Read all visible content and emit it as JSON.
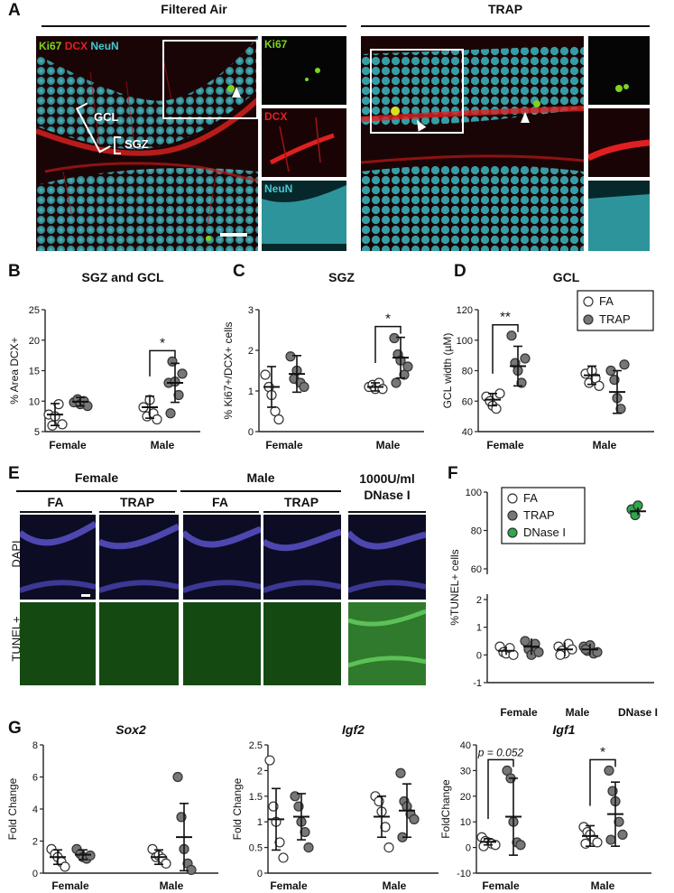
{
  "panel_letters": {
    "A": "A",
    "B": "B",
    "C": "C",
    "D": "D",
    "E": "E",
    "F": "F",
    "G": "G"
  },
  "panelA": {
    "group_left": "Filtered Air",
    "group_right": "TRAP",
    "stain_ki67": "Ki67",
    "stain_dcx": "DCX",
    "stain_neun": "NeuN",
    "inset_ki67": "Ki67",
    "inset_dcx": "DCX",
    "inset_neun": "NeuN",
    "gcl": "GCL",
    "sgz": "SGZ",
    "colors": {
      "ki67": "#7ed321",
      "dcx": "#e02020",
      "neun": "#46c9d1"
    }
  },
  "panelE": {
    "female": "Female",
    "male": "Male",
    "fa1": "FA",
    "trap1": "TRAP",
    "fa2": "FA",
    "trap2": "TRAP",
    "dnase_line1": "1000U/ml",
    "dnase_line2": "DNase I",
    "row_dapi": "DAPI",
    "row_tunel": "TUNEL+"
  },
  "chart_data": [
    {
      "id": "B",
      "type": "scatter",
      "title": "SGZ and GCL",
      "ylabel": "% Area DCX+",
      "ylim": [
        5,
        25
      ],
      "yticks": [
        5,
        10,
        15,
        20,
        25
      ],
      "categories": [
        "Female",
        "Male"
      ],
      "series": [
        {
          "name": "FA",
          "color": "#ffffff",
          "points": [
            [
              7.8,
              6.0,
              7.5,
              9.5,
              6.2
            ],
            [
              9.0,
              7.5,
              10.2,
              8.0,
              7.0
            ]
          ],
          "mean": [
            7.8,
            9.0
          ],
          "sd": [
            1.8,
            1.8
          ]
        },
        {
          "name": "TRAP",
          "color": "#777777",
          "points": [
            [
              9.8,
              10.3,
              9.5,
              10.0,
              9.2
            ],
            [
              13.0,
              16.5,
              13.2,
              11.0,
              14.5,
              8.0
            ]
          ],
          "mean": [
            9.9,
            13.0
          ],
          "sd": [
            0.7,
            3.2
          ]
        }
      ],
      "sig": [
        {
          "cat": 1,
          "label": "*"
        }
      ]
    },
    {
      "id": "C",
      "type": "scatter",
      "title": "SGZ",
      "ylabel": "% Ki67+/DCX+ cells",
      "ylim": [
        0,
        3
      ],
      "yticks": [
        0,
        1,
        2,
        3
      ],
      "categories": [
        "Female",
        "Male"
      ],
      "series": [
        {
          "name": "FA",
          "color": "#ffffff",
          "points": [
            [
              1.4,
              1.1,
              0.9,
              0.5,
              0.3
            ],
            [
              1.1,
              1.15,
              1.05,
              1.2,
              1.05
            ]
          ],
          "mean": [
            1.1,
            1.1
          ],
          "sd": [
            0.5,
            0.1
          ]
        },
        {
          "name": "TRAP",
          "color": "#777777",
          "points": [
            [
              1.85,
              1.3,
              1.5,
              1.2,
              1.1
            ],
            [
              2.3,
              1.9,
              1.75,
              1.4,
              1.6,
              1.2
            ]
          ],
          "mean": [
            1.42,
            1.82
          ],
          "sd": [
            0.45,
            0.5
          ]
        }
      ],
      "sig": [
        {
          "cat": 1,
          "label": "*"
        }
      ]
    },
    {
      "id": "D",
      "type": "scatter",
      "title": "GCL",
      "ylabel": "GCL width (µM)",
      "ylim": [
        40,
        120
      ],
      "yticks": [
        40,
        60,
        80,
        100,
        120
      ],
      "categories": [
        "Female",
        "Male"
      ],
      "legend": [
        "FA",
        "TRAP"
      ],
      "series": [
        {
          "name": "FA",
          "color": "#ffffff",
          "points": [
            [
              63,
              60,
              57,
              55,
              65
            ],
            [
              78,
              72,
              80,
              75,
              70
            ]
          ],
          "mean": [
            61,
            77
          ],
          "sd": [
            4,
            6
          ]
        },
        {
          "name": "TRAP",
          "color": "#777777",
          "points": [
            [
              103,
              85,
              80,
              72,
              88
            ],
            [
              80,
              74,
              62,
              55,
              84
            ]
          ],
          "mean": [
            83,
            66
          ],
          "sd": [
            13,
            14
          ]
        }
      ],
      "sig": [
        {
          "cat": 0,
          "label": "**"
        }
      ]
    },
    {
      "id": "F",
      "type": "scatter",
      "ylabel": "%TUNEL+ cells",
      "ylim": [
        -1,
        100
      ],
      "yticks": [
        -1,
        0,
        1,
        2,
        60,
        80,
        100
      ],
      "categories": [
        "Female",
        "Male",
        "DNase I"
      ],
      "legend": [
        "FA",
        "TRAP",
        "DNase I"
      ],
      "series": [
        {
          "name": "FA",
          "color": "#ffffff",
          "points": [
            [
              0.3,
              0.1,
              0.05,
              0.25,
              0
            ],
            [
              0.3,
              0.15,
              0.05,
              0.4,
              0.2,
              0
            ]
          ],
          "mean": [
            0.15,
            0.2
          ],
          "sd": [
            0.15,
            0.25
          ]
        },
        {
          "name": "TRAP",
          "color": "#777777",
          "points": [
            [
              0.5,
              0.2,
              0.0,
              0.4,
              0.1
            ],
            [
              0.3,
              0.15,
              0.35,
              0.05,
              0.1,
              0.2
            ]
          ],
          "mean": [
            0.3,
            0.2
          ],
          "sd": [
            0.3,
            0.2
          ]
        },
        {
          "name": "DNase I",
          "color": "#2ea84a",
          "points": [
            [],
            [],
            [
              91,
              88,
              93
            ]
          ],
          "mean": [
            null,
            null,
            90
          ],
          "sd": [
            null,
            null,
            2
          ]
        }
      ]
    },
    {
      "id": "G1",
      "type": "scatter",
      "title": "Sox2",
      "ylabel": "Fold Change",
      "ylim": [
        0,
        8
      ],
      "yticks": [
        0,
        2,
        4,
        6,
        8
      ],
      "categories": [
        "Female",
        "Male"
      ],
      "series": [
        {
          "name": "FA",
          "color": "#ffffff",
          "points": [
            [
              1.5,
              1.2,
              1.0,
              0.7,
              0.4
            ],
            [
              1.5,
              1.0,
              1.1,
              0.9,
              0.6
            ]
          ],
          "mean": [
            1.0,
            1.0
          ],
          "sd": [
            0.45,
            0.45
          ]
        },
        {
          "name": "TRAP",
          "color": "#777777",
          "points": [
            [
              1.5,
              1.2,
              1.0,
              0.9,
              1.1
            ],
            [
              6.0,
              3.5,
              1.5,
              0.6,
              0.2
            ]
          ],
          "mean": [
            1.15,
            2.25
          ],
          "sd": [
            0.3,
            2.1
          ]
        }
      ]
    },
    {
      "id": "G2",
      "type": "scatter",
      "title": "Igf2",
      "ylabel": "Fold Change",
      "ylim": [
        0,
        2.5
      ],
      "yticks": [
        0,
        0.5,
        1,
        1.5,
        2,
        2.5
      ],
      "categories": [
        "Female",
        "Male"
      ],
      "series": [
        {
          "name": "FA",
          "color": "#ffffff",
          "points": [
            [
              2.2,
              1.3,
              1.0,
              0.6,
              0.3
            ],
            [
              1.5,
              1.4,
              1.2,
              0.9,
              0.5
            ]
          ],
          "mean": [
            1.05,
            1.1
          ],
          "sd": [
            0.6,
            0.4
          ]
        },
        {
          "name": "TRAP",
          "color": "#777777",
          "points": [
            [
              1.5,
              1.3,
              1.0,
              0.8,
              0.5
            ],
            [
              1.95,
              1.4,
              1.3,
              1.15,
              1.05,
              0.7
            ]
          ],
          "mean": [
            1.1,
            1.22
          ],
          "sd": [
            0.45,
            0.52
          ]
        }
      ]
    },
    {
      "id": "G3",
      "type": "scatter",
      "title": "Igf1",
      "ylabel": "FoldChange",
      "ylim": [
        -10,
        40
      ],
      "yticks": [
        -10,
        0,
        10,
        20,
        30,
        40
      ],
      "categories": [
        "Female",
        "Male"
      ],
      "series": [
        {
          "name": "FA",
          "color": "#ffffff",
          "points": [
            [
              4,
              2.5,
              2,
              1.5,
              1,
              0.5
            ],
            [
              8,
              6,
              5,
              3,
              2,
              1.5
            ]
          ],
          "mean": [
            2.2,
            4.5
          ],
          "sd": [
            1.2,
            4
          ]
        },
        {
          "name": "TRAP",
          "color": "#777777",
          "points": [
            [
              30,
              27,
              10,
              2,
              1
            ],
            [
              30,
              22,
              18,
              10,
              5,
              3
            ]
          ],
          "mean": [
            12,
            13
          ],
          "sd": [
            15,
            12.5
          ]
        }
      ],
      "sig": [
        {
          "cat": 0,
          "label": "p = 0.052"
        },
        {
          "cat": 1,
          "label": "*"
        }
      ]
    }
  ]
}
